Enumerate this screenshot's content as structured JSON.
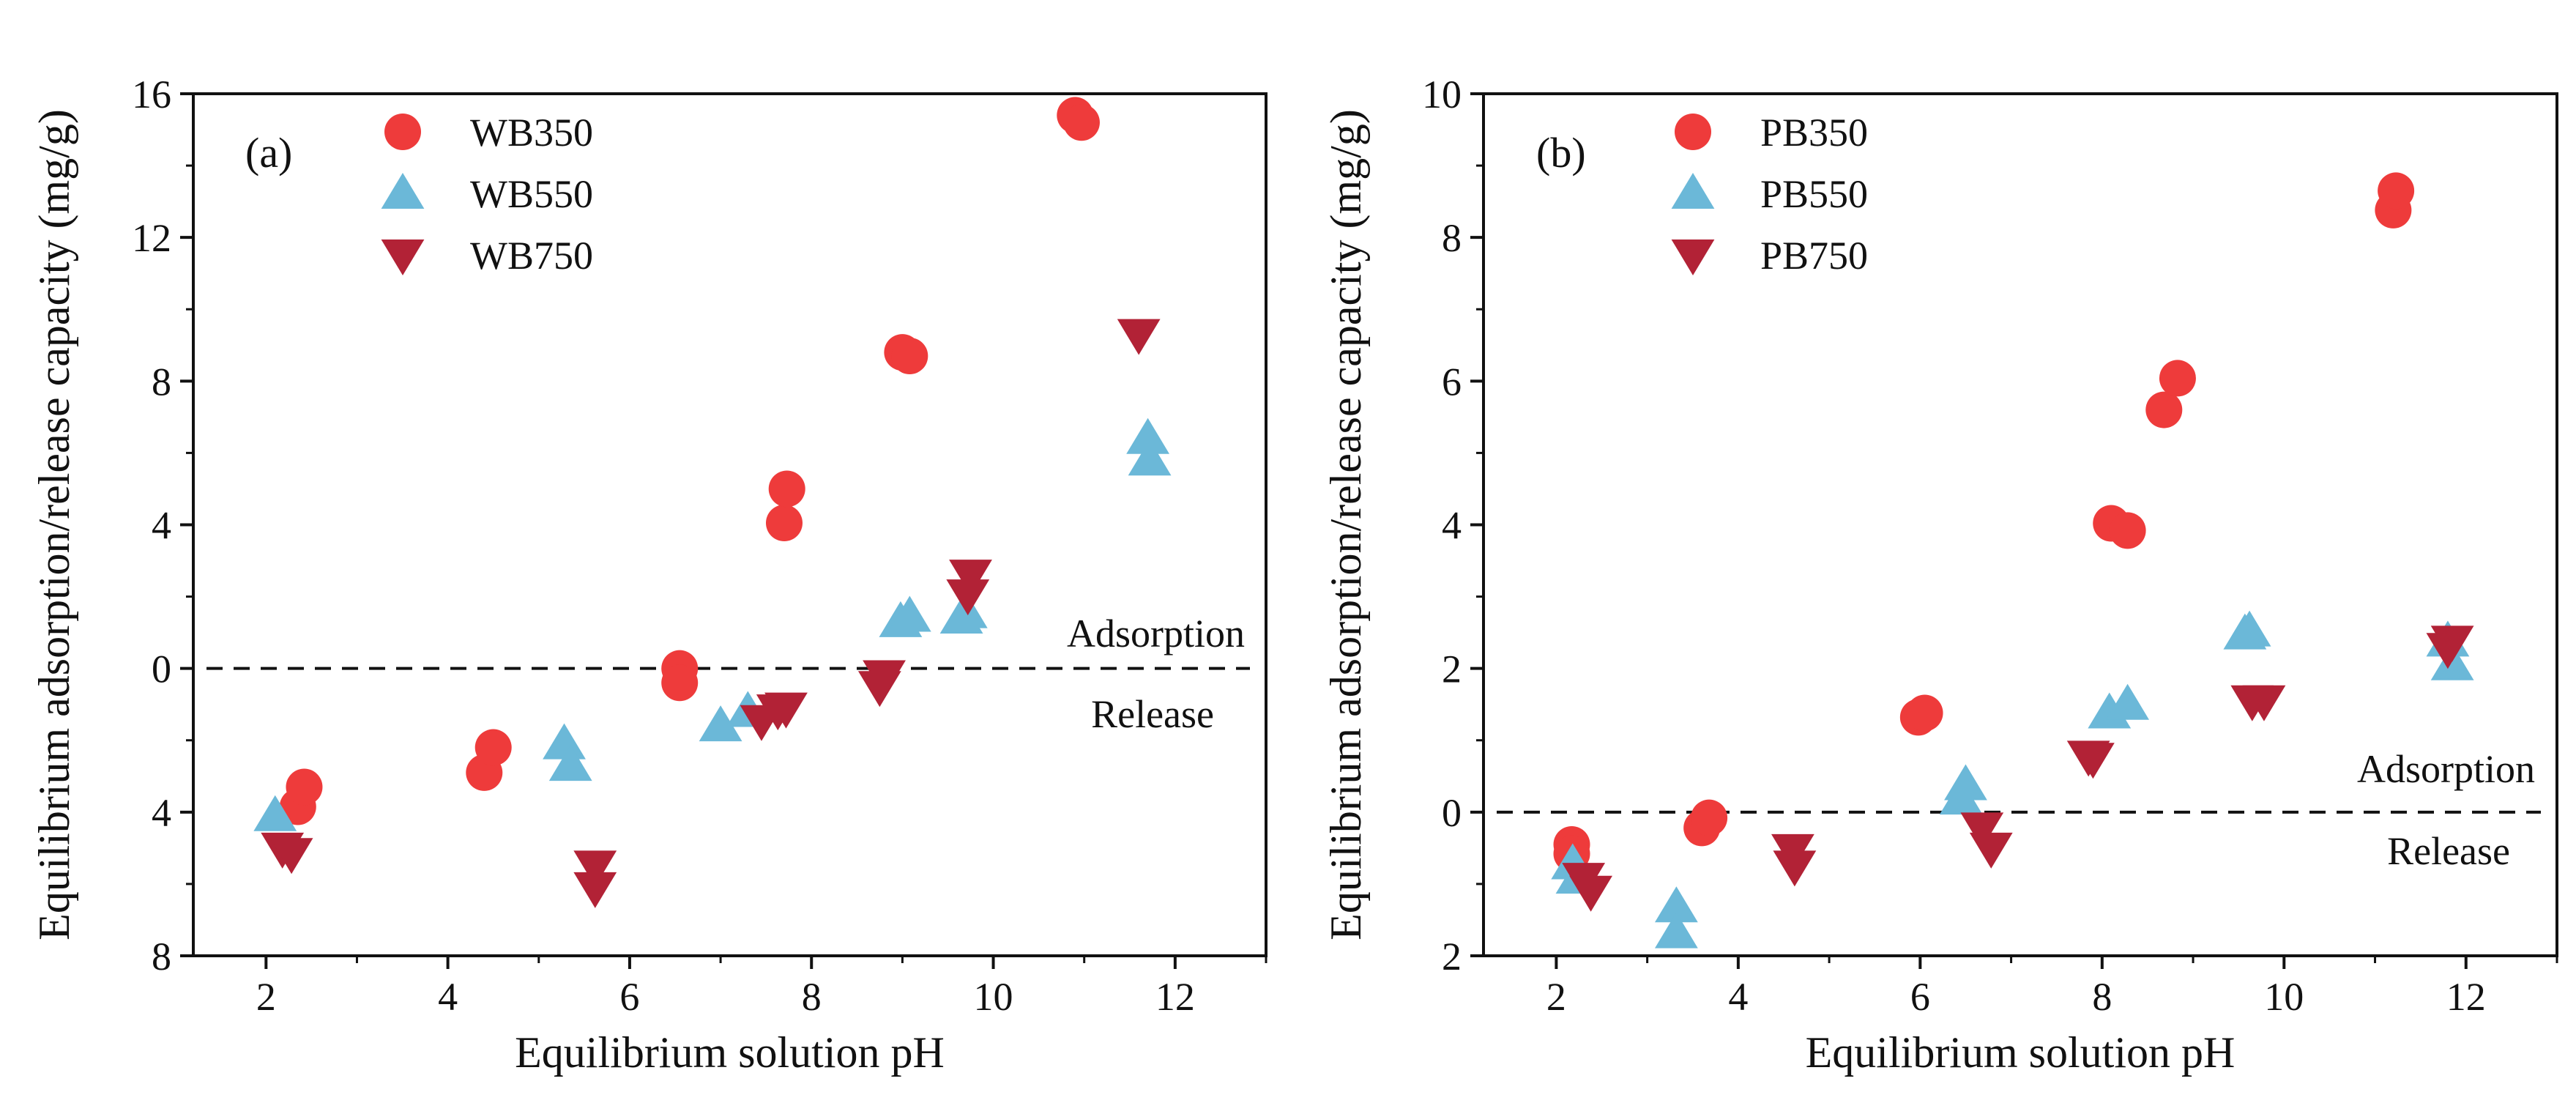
{
  "colors": {
    "series_350": "#EE3B3B",
    "series_550": "#6BB8D8",
    "series_750": "#B22236",
    "axis": "#111111",
    "zero_line": "#111111"
  },
  "chart_data": [
    {
      "id": "a",
      "type": "scatter",
      "panel_label": "(a)",
      "xlabel": "Equilibrium solution pH",
      "ylabel": "Equilibrium adsorption/release capacity (mg/g)",
      "xlim": [
        1.2,
        13.0
      ],
      "ylim": [
        -8,
        16
      ],
      "xticks": [
        2,
        4,
        6,
        8,
        10,
        12
      ],
      "xtick_labels": [
        "2",
        "4",
        "6",
        "8",
        "10",
        "12"
      ],
      "yticks": [
        -8,
        -4,
        0,
        4,
        8,
        12,
        16
      ],
      "ytick_labels": [
        "8",
        "4",
        "0",
        "4",
        "8",
        "12",
        "16"
      ],
      "zero_line": {
        "y": 0,
        "above_label": "Adsorption",
        "below_label": "Release"
      },
      "legend_position": "top-left",
      "series": [
        {
          "name": "WB350",
          "marker": "circle",
          "color": "#EE3B3B",
          "points": [
            [
              2.35,
              -3.85
            ],
            [
              2.42,
              -3.3
            ],
            [
              4.4,
              -2.9
            ],
            [
              4.5,
              -2.2
            ],
            [
              6.55,
              0.0
            ],
            [
              6.55,
              -0.4
            ],
            [
              7.7,
              4.05
            ],
            [
              7.73,
              5.0
            ],
            [
              9.0,
              8.8
            ],
            [
              9.08,
              8.7
            ],
            [
              10.9,
              15.4
            ],
            [
              10.97,
              15.2
            ]
          ]
        },
        {
          "name": "WB550",
          "marker": "triangle-up",
          "color": "#6BB8D8",
          "points": [
            [
              2.1,
              -4.1
            ],
            [
              5.28,
              -2.1
            ],
            [
              5.35,
              -2.7
            ],
            [
              7.0,
              -1.6
            ],
            [
              7.3,
              -1.2
            ],
            [
              8.98,
              1.3
            ],
            [
              9.08,
              1.45
            ],
            [
              9.65,
              1.4
            ],
            [
              9.7,
              1.55
            ],
            [
              11.7,
              6.4
            ],
            [
              11.72,
              5.8
            ]
          ]
        },
        {
          "name": "WB750",
          "marker": "triangle-down",
          "color": "#B22236",
          "points": [
            [
              2.18,
              -5.0
            ],
            [
              2.28,
              -5.15
            ],
            [
              5.62,
              -5.5
            ],
            [
              5.62,
              -6.1
            ],
            [
              7.45,
              -1.45
            ],
            [
              7.63,
              -1.15
            ],
            [
              7.72,
              -1.1
            ],
            [
              8.75,
              -0.5
            ],
            [
              8.8,
              -0.2
            ],
            [
              9.75,
              2.6
            ],
            [
              9.72,
              2.05
            ],
            [
              11.6,
              9.3
            ]
          ]
        }
      ]
    },
    {
      "id": "b",
      "type": "scatter",
      "panel_label": "(b)",
      "xlabel": "Equilibrium solution pH",
      "ylabel": "Equilibrium adsorption/release capacity (mg/g)",
      "xlim": [
        1.2,
        13.0
      ],
      "ylim": [
        -2,
        10
      ],
      "xticks": [
        2,
        4,
        6,
        8,
        10,
        12
      ],
      "xtick_labels": [
        "2",
        "4",
        "6",
        "8",
        "10",
        "12"
      ],
      "yticks": [
        -2,
        0,
        2,
        4,
        6,
        8,
        10
      ],
      "ytick_labels": [
        "2",
        "0",
        "2",
        "4",
        "6",
        "8",
        "10"
      ],
      "zero_line": {
        "y": 0,
        "above_label": "Adsorption",
        "below_label": "Release"
      },
      "legend_position": "top-left",
      "series": [
        {
          "name": "PB350",
          "marker": "circle",
          "color": "#EE3B3B",
          "points": [
            [
              2.17,
              -0.45
            ],
            [
              2.17,
              -0.58
            ],
            [
              3.6,
              -0.22
            ],
            [
              3.68,
              -0.08
            ],
            [
              5.98,
              1.32
            ],
            [
              6.05,
              1.38
            ],
            [
              8.1,
              4.02
            ],
            [
              8.28,
              3.92
            ],
            [
              8.68,
              5.6
            ],
            [
              8.83,
              6.04
            ],
            [
              11.2,
              8.38
            ],
            [
              11.23,
              8.65
            ]
          ]
        },
        {
          "name": "PB550",
          "marker": "triangle-up",
          "color": "#6BB8D8",
          "points": [
            [
              2.18,
              -0.72
            ],
            [
              2.23,
              -0.92
            ],
            [
              3.32,
              -1.32
            ],
            [
              3.32,
              -1.68
            ],
            [
              6.45,
              0.18
            ],
            [
              6.5,
              0.38
            ],
            [
              8.08,
              1.38
            ],
            [
              8.28,
              1.5
            ],
            [
              9.57,
              2.48
            ],
            [
              9.62,
              2.52
            ],
            [
              11.8,
              2.38
            ],
            [
              11.85,
              2.05
            ]
          ]
        },
        {
          "name": "PB750",
          "marker": "triangle-down",
          "color": "#B22236",
          "points": [
            [
              2.3,
              -0.92
            ],
            [
              2.38,
              -1.1
            ],
            [
              4.6,
              -0.52
            ],
            [
              4.62,
              -0.75
            ],
            [
              6.68,
              -0.22
            ],
            [
              6.78,
              -0.5
            ],
            [
              7.85,
              0.78
            ],
            [
              7.9,
              0.75
            ],
            [
              9.65,
              1.55
            ],
            [
              9.78,
              1.55
            ],
            [
              11.8,
              2.28
            ],
            [
              11.85,
              2.38
            ]
          ]
        }
      ]
    }
  ]
}
